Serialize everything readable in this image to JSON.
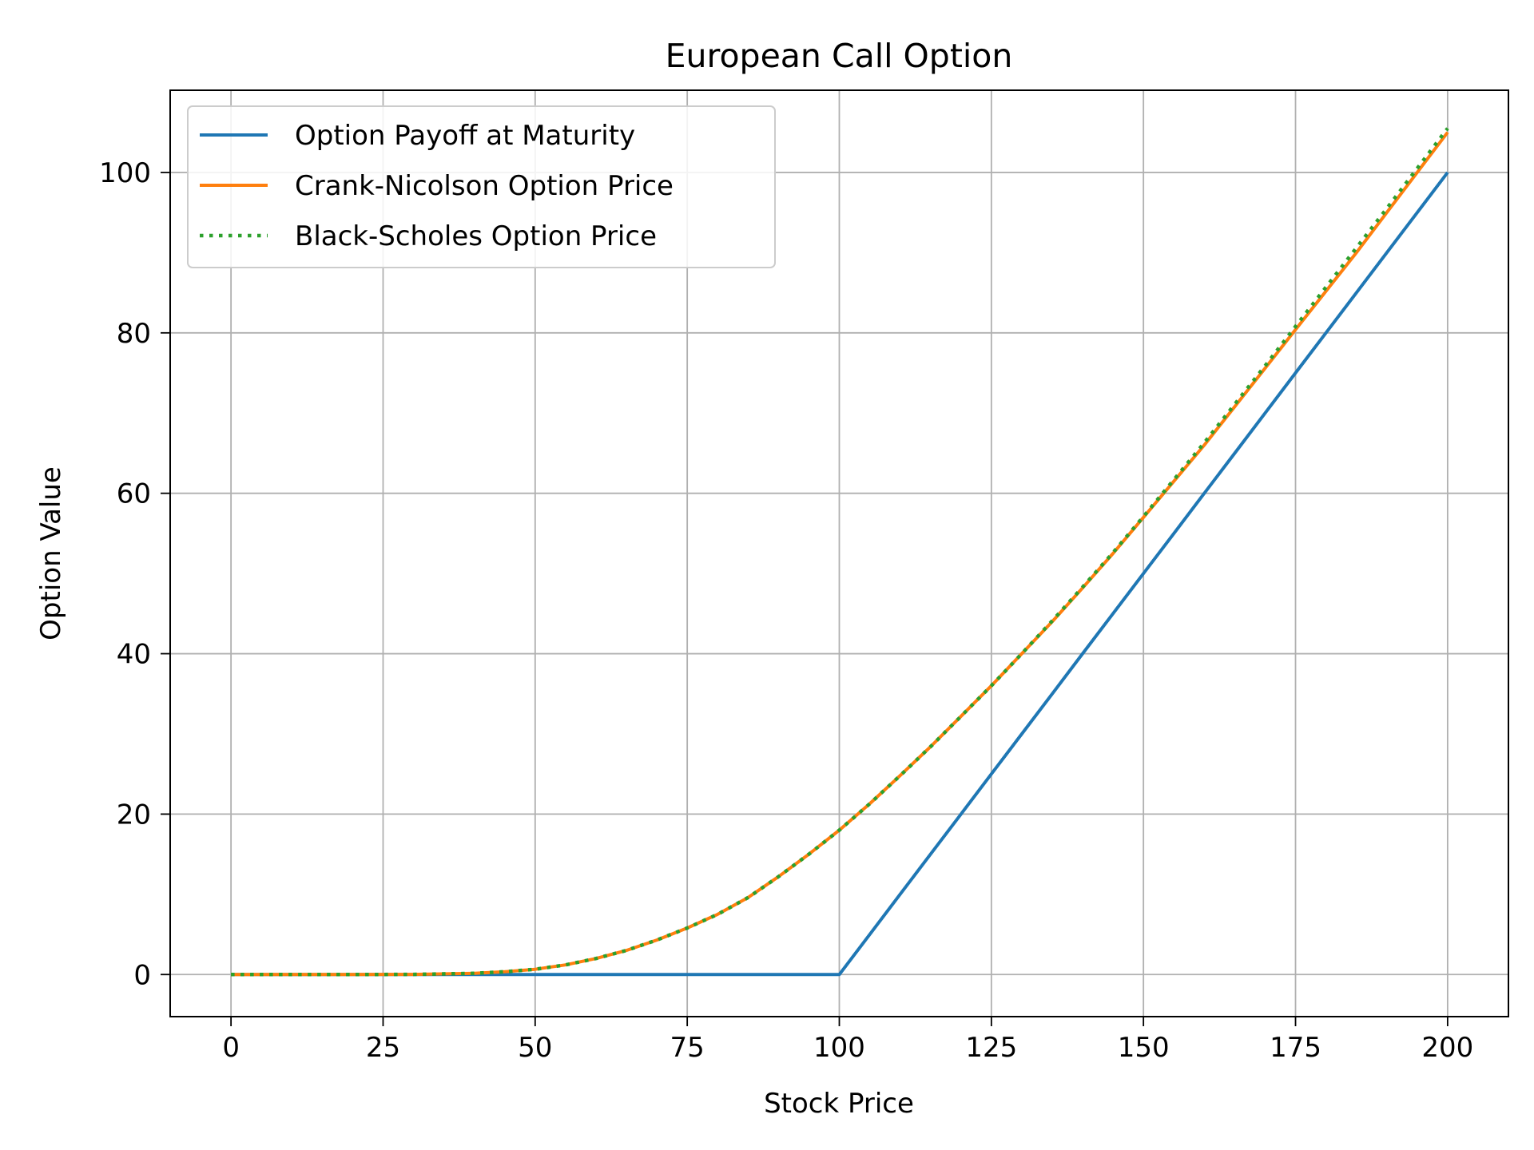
{
  "chart_data": {
    "type": "line",
    "title": "European Call Option",
    "xlabel": "Stock Price",
    "ylabel": "Option Value",
    "xlim": [
      -10,
      210
    ],
    "ylim": [
      -5.25,
      110.25
    ],
    "x_ticks": [
      0,
      25,
      50,
      75,
      100,
      125,
      150,
      175,
      200
    ],
    "y_ticks": [
      0,
      20,
      40,
      60,
      80,
      100
    ],
    "grid": true,
    "legend_position": "upper-left",
    "x": [
      0,
      10,
      20,
      30,
      40,
      45,
      50,
      55,
      60,
      65,
      70,
      75,
      80,
      85,
      90,
      95,
      100,
      105,
      110,
      115,
      120,
      125,
      130,
      135,
      140,
      145,
      150,
      155,
      160,
      165,
      170,
      175,
      180,
      185,
      190,
      195,
      200
    ],
    "series": [
      {
        "name": "Option Payoff at Maturity",
        "color": "#1f77b4",
        "style": "solid",
        "values": [
          0,
          0,
          0,
          0,
          0,
          0,
          0,
          0,
          0,
          0,
          0,
          0,
          0,
          0,
          0,
          0,
          0,
          5,
          10,
          15,
          20,
          25,
          30,
          35,
          40,
          45,
          50,
          55,
          60,
          65,
          70,
          75,
          80,
          85,
          90,
          95,
          100
        ]
      },
      {
        "name": "Crank-Nicolson Option Price",
        "color": "#ff7f0e",
        "style": "solid",
        "values": [
          0,
          0,
          0,
          0.02,
          0.15,
          0.35,
          0.65,
          1.2,
          2.0,
          3.0,
          4.3,
          5.8,
          7.5,
          9.6,
          12.2,
          15.0,
          18.0,
          21.3,
          24.8,
          28.4,
          32.2,
          36.0,
          40.0,
          44.0,
          48.2,
          52.5,
          57.0,
          61.5,
          66.0,
          70.8,
          75.6,
          80.4,
          85.2,
          90.0,
          95.0,
          100.0,
          105.0
        ]
      },
      {
        "name": "Black-Scholes Option Price",
        "color": "#2ca02c",
        "style": "dotted",
        "values": [
          0,
          0,
          0,
          0.02,
          0.15,
          0.35,
          0.65,
          1.2,
          2.0,
          3.0,
          4.3,
          5.8,
          7.5,
          9.6,
          12.2,
          15.0,
          18.0,
          21.3,
          24.8,
          28.4,
          32.2,
          36.0,
          40.0,
          44.1,
          48.3,
          52.6,
          57.1,
          61.7,
          66.3,
          71.1,
          75.9,
          80.8,
          85.7,
          90.6,
          95.5,
          100.5,
          105.5
        ]
      }
    ]
  }
}
